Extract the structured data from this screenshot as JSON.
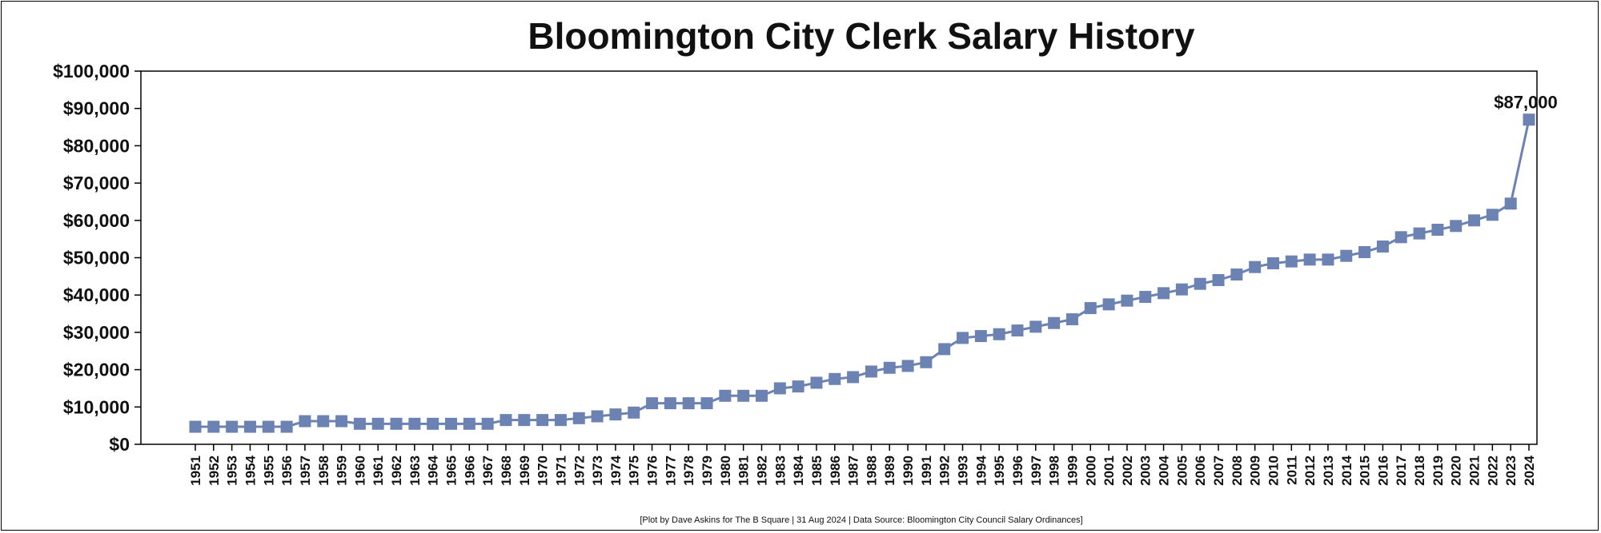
{
  "chart_data": {
    "type": "line",
    "title": "Bloomington City Clerk Salary History",
    "xlabel": "",
    "ylabel": "",
    "ylim": [
      0,
      100000
    ],
    "yticks": [
      0,
      10000,
      20000,
      30000,
      40000,
      50000,
      60000,
      70000,
      80000,
      90000,
      100000
    ],
    "ytick_labels": [
      "$0",
      "$10,000",
      "$20,000",
      "$30,000",
      "$40,000",
      "$50,000",
      "$60,000",
      "$70,000",
      "$80,000",
      "$90,000",
      "$100,000"
    ],
    "grid": false,
    "marker": "square",
    "color": "#6b82b3",
    "x": [
      "1951",
      "1952",
      "1953",
      "1954",
      "1955",
      "1956",
      "1957",
      "1958",
      "1959",
      "1960",
      "1961",
      "1962",
      "1963",
      "1964",
      "1965",
      "1966",
      "1967",
      "1968",
      "1969",
      "1970",
      "1971",
      "1972",
      "1973",
      "1974",
      "1975",
      "1976",
      "1977",
      "1978",
      "1979",
      "1980",
      "1981",
      "1982",
      "1983",
      "1984",
      "1985",
      "1986",
      "1987",
      "1988",
      "1989",
      "1990",
      "1991",
      "1992",
      "1993",
      "1994",
      "1995",
      "1996",
      "1997",
      "1998",
      "1999",
      "2000",
      "2001",
      "2002",
      "2003",
      "2004",
      "2005",
      "2006",
      "2007",
      "2008",
      "2009",
      "2010",
      "2011",
      "2012",
      "2013",
      "2014",
      "2015",
      "2016",
      "2017",
      "2018",
      "2019",
      "2020",
      "2021",
      "2022",
      "2023",
      "2024"
    ],
    "series": [
      {
        "name": "",
        "values": [
          4700,
          4700,
          4700,
          4700,
          4700,
          4700,
          6200,
          6200,
          6200,
          5500,
          5500,
          5500,
          5500,
          5500,
          5500,
          5500,
          5500,
          6500,
          6500,
          6500,
          6500,
          7000,
          7500,
          8000,
          8500,
          11000,
          11000,
          11000,
          11000,
          13000,
          13000,
          13000,
          15000,
          15500,
          16500,
          17500,
          18000,
          19500,
          20500,
          21000,
          22000,
          25500,
          28500,
          29000,
          29500,
          30500,
          31500,
          32500,
          33500,
          36500,
          37500,
          38500,
          39500,
          40500,
          41500,
          43000,
          44000,
          45500,
          47500,
          48500,
          49000,
          49500,
          49500,
          50500,
          51500,
          53000,
          55500,
          56500,
          57500,
          58500,
          60000,
          61500,
          64500,
          87000
        ]
      }
    ],
    "annotation": {
      "text": "$87,000"
    },
    "footer": "[Plot by Dave Askins for The B Square | 31 Aug 2024 | Data Source: Bloomington City Council Salary Ordinances]"
  }
}
